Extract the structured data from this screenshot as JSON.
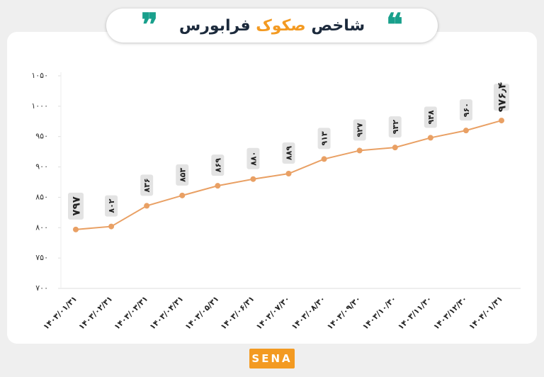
{
  "chart_data": {
    "type": "line",
    "title_parts": [
      "شاخص",
      "صکوک",
      "فرابورس"
    ],
    "logo": "SENA",
    "categories": [
      "۱۴۰۳/۰۱/۳۱",
      "۱۴۰۳/۰۲/۳۱",
      "۱۴۰۳/۰۳/۳۱",
      "۱۴۰۳/۰۴/۳۱",
      "۱۴۰۳/۰۵/۳۱",
      "۱۴۰۳/۰۶/۳۱",
      "۱۴۰۳/۰۷/۳۰",
      "۱۴۰۳/۰۸/۳۰",
      "۱۴۰۳/۰۹/۳۰",
      "۱۴۰۳/۱۰/۳۰",
      "۱۴۰۳/۱۱/۳۰",
      "۱۴۰۳/۱۲/۳۰",
      "۱۴۰۴/۰۱/۳۱"
    ],
    "values": [
      797,
      802,
      836,
      853,
      869,
      880,
      889,
      913,
      927,
      932,
      948,
      960,
      976.4
    ],
    "value_labels": [
      "۷۹۷",
      "۸۰۲",
      "۸۳۶",
      "۸۵۳",
      "۸۶۹",
      "۸۸۰",
      "۸۸۹",
      "۹۱۳",
      "۹۲۷",
      "۹۳۲",
      "۹۴۸",
      "۹۶۰",
      "۹۷۶٫۴"
    ],
    "color": "#e9a064",
    "ylim": [
      700,
      1050
    ],
    "yticks": [
      {
        "value": 700,
        "label": "۷۰۰"
      },
      {
        "value": 750,
        "label": "۷۵۰"
      },
      {
        "value": 800,
        "label": "۸۰۰"
      },
      {
        "value": 850,
        "label": "۸۵۰"
      },
      {
        "value": 900,
        "label": "۹۰۰"
      },
      {
        "value": 950,
        "label": "۹۵۰"
      },
      {
        "value": 1000,
        "label": "۱۰۰۰"
      },
      {
        "value": 1050,
        "label": "۱۰۵۰"
      }
    ]
  }
}
